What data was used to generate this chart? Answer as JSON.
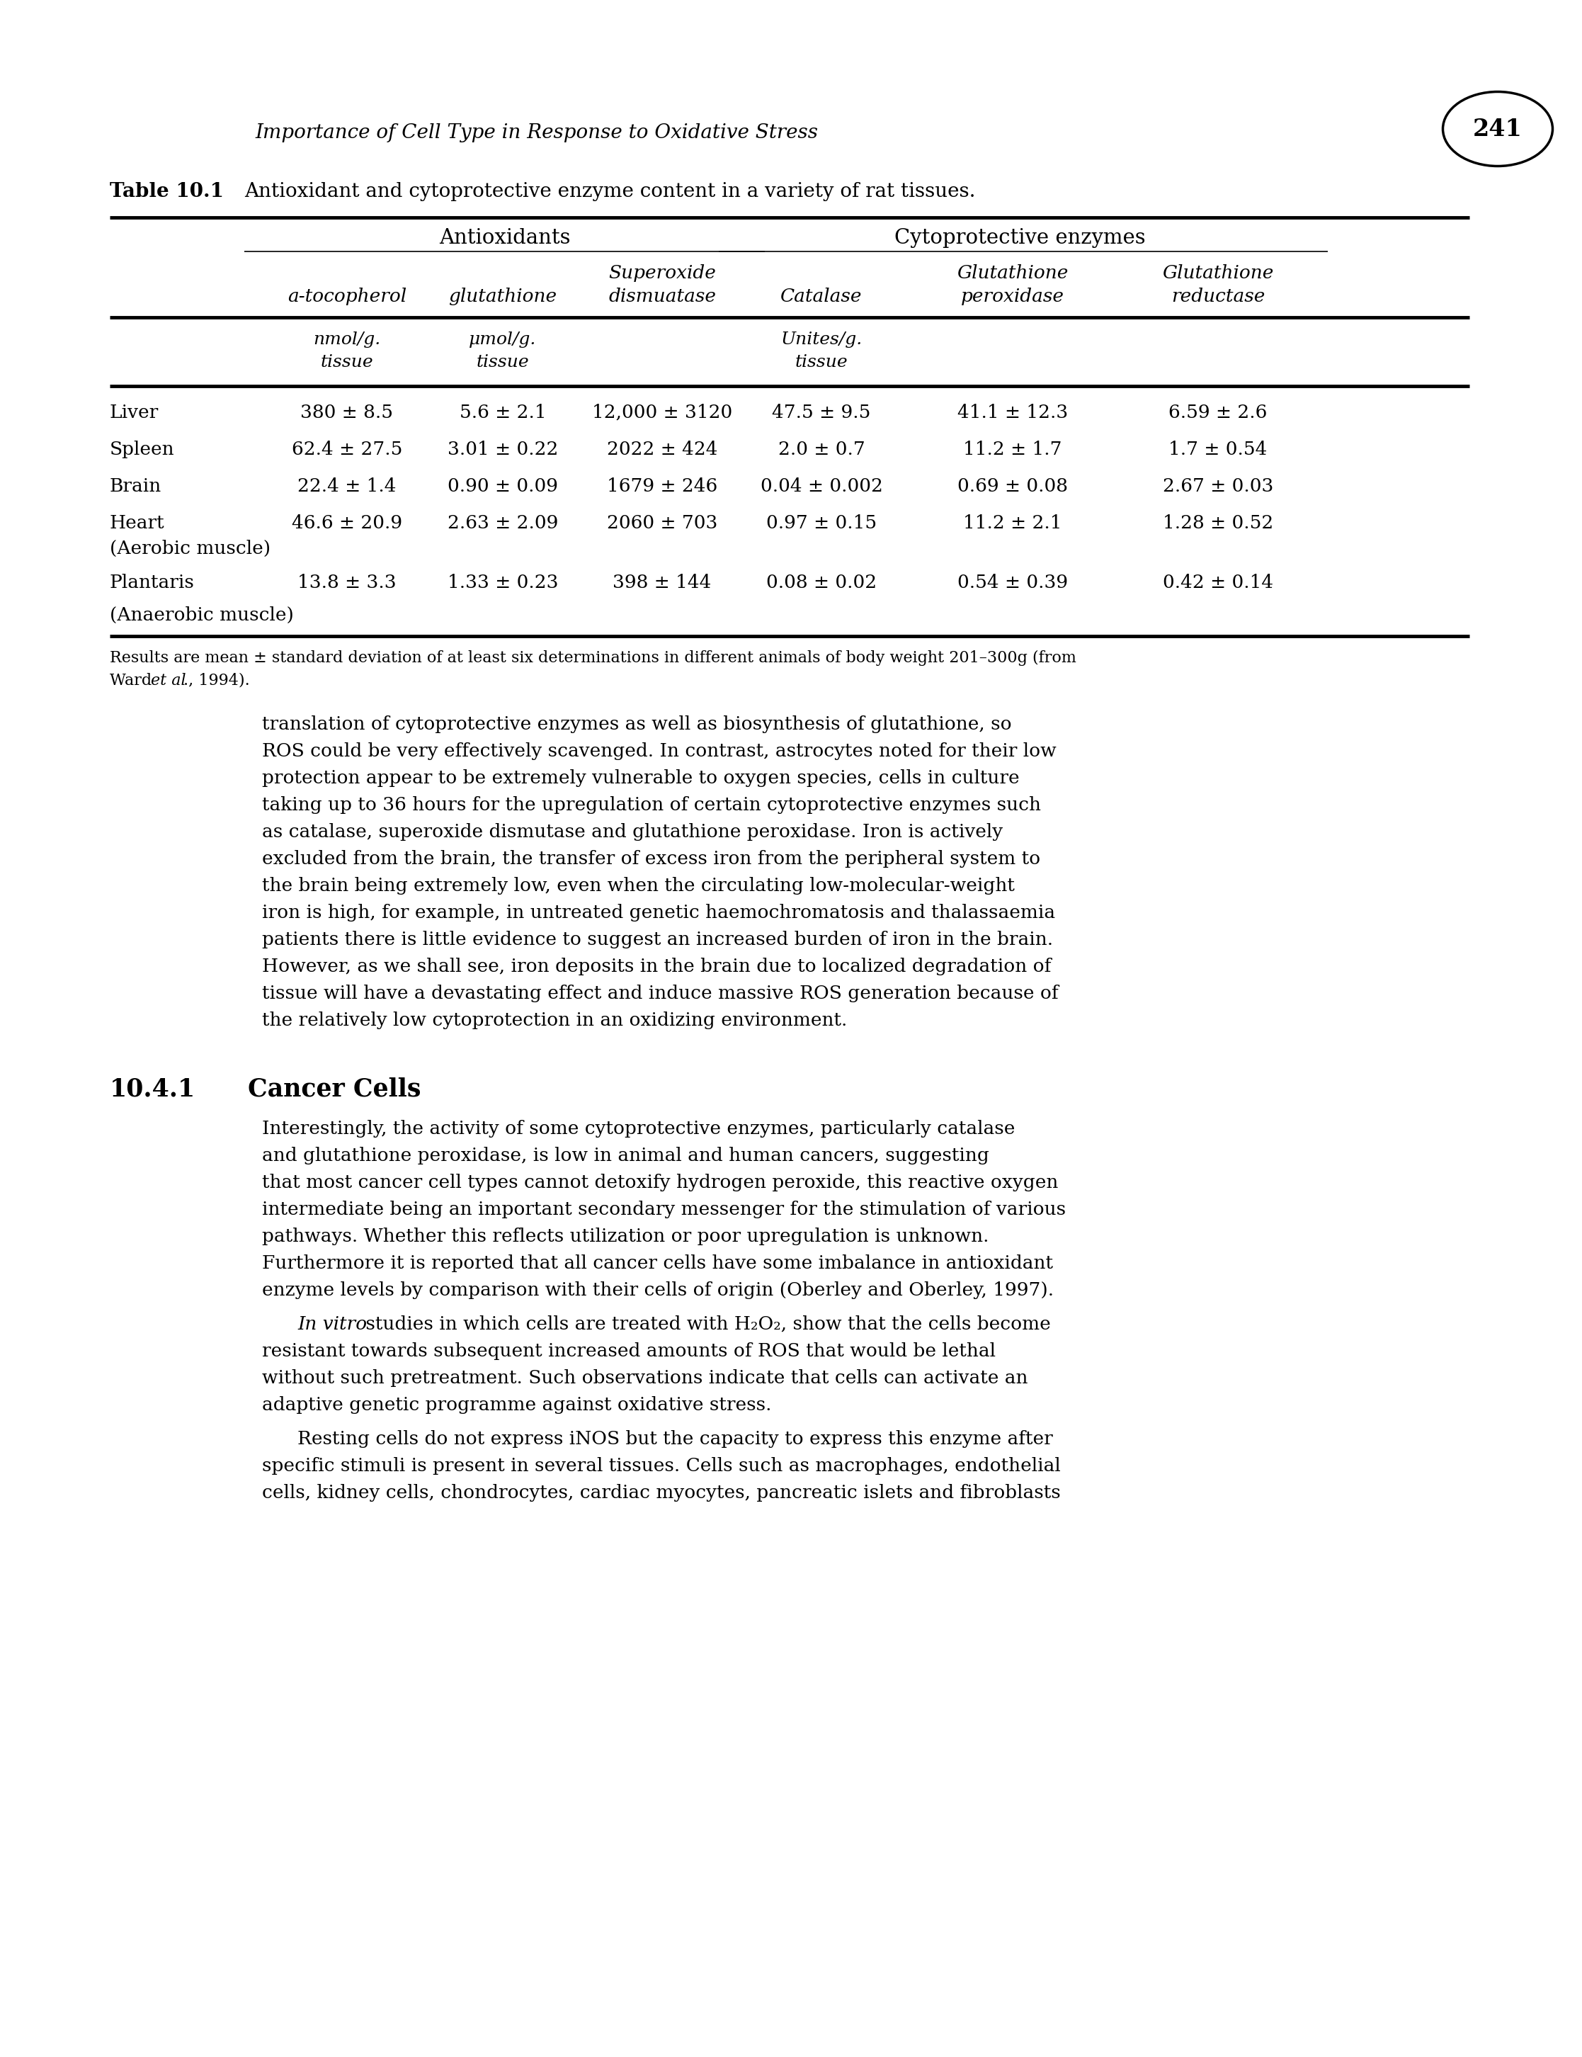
{
  "page_title_italic": "Importance of Cell Type in Response to Oxidative Stress",
  "page_number": "241",
  "table_label": "Table 10.1",
  "table_caption": "Antioxidant and cytoprotective enzyme content in a variety of rat tissues.",
  "rows": [
    [
      "Liver",
      "380 ± 8.5",
      "5.6 ± 2.1",
      "12,000 ± 3120",
      "47.5 ± 9.5",
      "41.1 ± 12.3",
      "6.59 ± 2.6"
    ],
    [
      "Spleen",
      "62.4 ± 27.5",
      "3.01 ± 0.22",
      "2022 ± 424",
      "2.0 ± 0.7",
      "11.2 ± 1.7",
      "1.7 ± 0.54"
    ],
    [
      "Brain",
      "22.4 ± 1.4",
      "0.90 ± 0.09",
      "1679 ± 246",
      "0.04 ± 0.002",
      "0.69 ± 0.08",
      "2.67 ± 0.03"
    ],
    [
      "Heart",
      "46.6 ± 20.9",
      "2.63 ± 2.09",
      "2060 ± 703",
      "0.97 ± 0.15",
      "11.2 ± 2.1",
      "1.28 ± 0.52"
    ],
    [
      "(Aerobic muscle)",
      "",
      "",
      "",
      "",
      "",
      ""
    ],
    [
      "Plantaris",
      "13.8 ± 3.3",
      "1.33 ± 0.23",
      "398 ± 144",
      "0.08 ± 0.02",
      "0.54 ± 0.39",
      "0.42 ± 0.14"
    ],
    [
      "(Anaerobic muscle)",
      "",
      "",
      "",
      "",
      "",
      ""
    ]
  ],
  "footnote_1": "Results are mean ± standard deviation of at least six determinations in different animals of body weight 201–300g (from",
  "footnote_2a": "Ward ",
  "footnote_2b": "et al",
  "footnote_2c": "., 1994).",
  "body_text_1_lines": [
    "translation of cytoprotective enzymes as well as biosynthesis of glutathione, so",
    "ROS could be very effectively scavenged. In contrast, astrocytes noted for their low",
    "protection appear to be extremely vulnerable to oxygen species, cells in culture",
    "taking up to 36 hours for the upregulation of certain cytoprotective enzymes such",
    "as catalase, superoxide dismutase and glutathione peroxidase. Iron is actively",
    "excluded from the brain, the transfer of excess iron from the peripheral system to",
    "the brain being extremely low, even when the circulating low-molecular-weight",
    "iron is high, for example, in untreated genetic haemochromatosis and thalassaemia",
    "patients there is little evidence to suggest an increased burden of iron in the brain.",
    "However, as we shall see, iron deposits in the brain due to localized degradation of",
    "tissue will have a devastating effect and induce massive ROS generation because of",
    "the relatively low cytoprotection in an oxidizing environment."
  ],
  "section_number": "10.4.1",
  "section_title": "Cancer Cells",
  "body_text_2_lines": [
    "Interestingly, the activity of some cytoprotective enzymes, particularly catalase",
    "and glutathione peroxidase, is low in animal and human cancers, suggesting",
    "that most cancer cell types cannot detoxify hydrogen peroxide, this reactive oxygen",
    "intermediate being an important secondary messenger for the stimulation of various",
    "pathways. Whether this reflects utilization or poor upregulation is unknown.",
    "Furthermore it is reported that all cancer cells have some imbalance in antioxidant",
    "enzyme levels by comparison with their cells of origin (Oberley and Oberley, 1997)."
  ],
  "body_text_3_italic": "In vitro",
  "body_text_3_rest_lines": [
    " studies in which cells are treated with H₂O₂, show that the cells become",
    "resistant towards subsequent increased amounts of ROS that would be lethal",
    "without such pretreatment. Such observations indicate that cells can activate an",
    "adaptive genetic programme against oxidative stress."
  ],
  "body_text_4_lines": [
    "Resting cells do not express iNOS but the capacity to express this enzyme after",
    "specific stimuli is present in several tissues. Cells such as macrophages, endothelial",
    "cells, kidney cells, chondrocytes, cardiac myocytes, pancreatic islets and fibroblasts"
  ],
  "bg_color": "#ffffff",
  "text_color": "#000000"
}
